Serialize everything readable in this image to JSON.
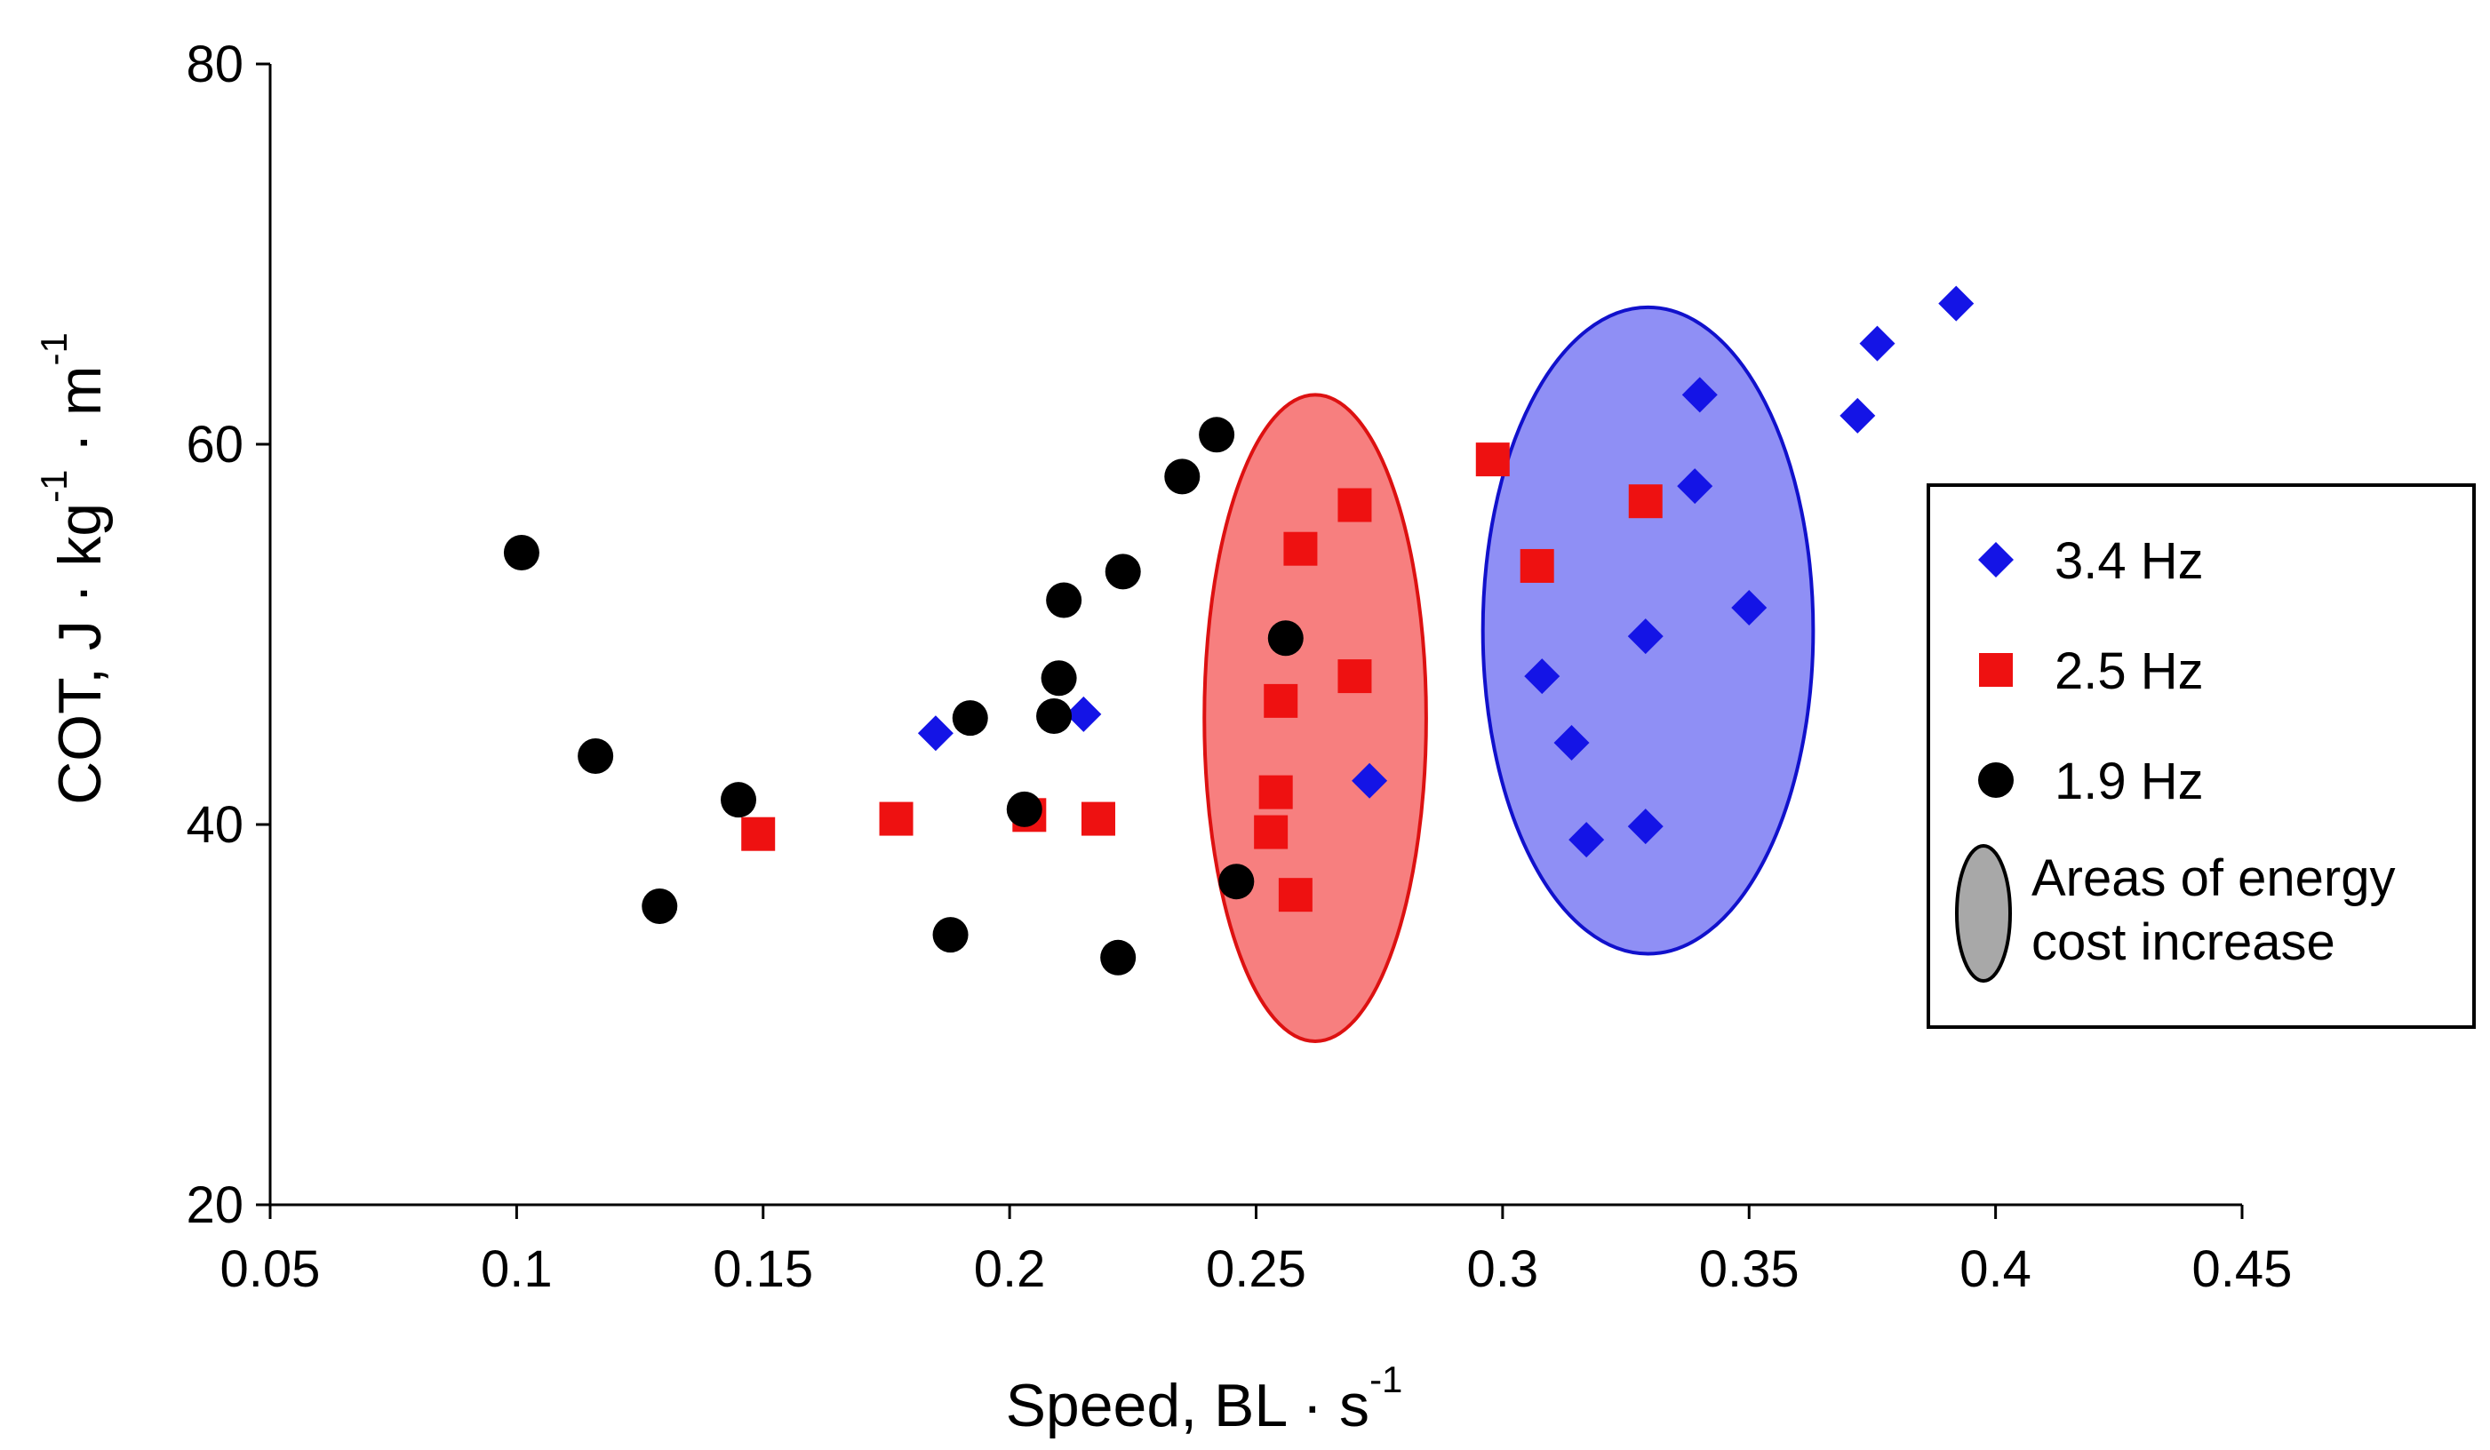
{
  "chart_data": {
    "type": "scatter",
    "title": "",
    "xlabel": {
      "main": "Speed, BL · s",
      "sup": "-1"
    },
    "ylabel": {
      "main1": "COT, J · kg",
      "sup1": "-1",
      "main2": " · m",
      "sup2": "-1"
    },
    "xlim": [
      0.05,
      0.45
    ],
    "ylim": [
      20,
      80
    ],
    "xticks": [
      0.05,
      0.1,
      0.15,
      0.2,
      0.25,
      0.3,
      0.35,
      0.4,
      0.45
    ],
    "xtick_labels": [
      "0.05",
      "0.1",
      "0.15",
      "0.2",
      "0.25",
      "0.3",
      "0.35",
      "0.4",
      "0.45"
    ],
    "yticks": [
      20,
      40,
      60,
      80
    ],
    "ytick_labels": [
      "20",
      "40",
      "60",
      "80"
    ],
    "grid": false,
    "legend_position": "right",
    "series": [
      {
        "name": "3.4 Hz",
        "marker": "diamond",
        "color": "#1414e6",
        "points": [
          [
            0.185,
            44.8
          ],
          [
            0.215,
            45.8
          ],
          [
            0.273,
            42.3
          ],
          [
            0.308,
            47.8
          ],
          [
            0.314,
            44.3
          ],
          [
            0.317,
            39.2
          ],
          [
            0.329,
            39.9
          ],
          [
            0.329,
            49.9
          ],
          [
            0.339,
            57.8
          ],
          [
            0.34,
            62.6
          ],
          [
            0.35,
            51.4
          ],
          [
            0.372,
            61.5
          ],
          [
            0.376,
            65.3
          ],
          [
            0.392,
            67.4
          ]
        ]
      },
      {
        "name": "2.5 Hz",
        "marker": "square",
        "color": "#ee1111",
        "points": [
          [
            0.149,
            39.5
          ],
          [
            0.177,
            40.3
          ],
          [
            0.204,
            40.5
          ],
          [
            0.218,
            40.3
          ],
          [
            0.253,
            39.6
          ],
          [
            0.254,
            41.7
          ],
          [
            0.255,
            46.5
          ],
          [
            0.258,
            36.3
          ],
          [
            0.259,
            54.5
          ],
          [
            0.27,
            56.8
          ],
          [
            0.27,
            47.8
          ],
          [
            0.298,
            59.2
          ],
          [
            0.307,
            53.6
          ],
          [
            0.329,
            57.0
          ]
        ]
      },
      {
        "name": "1.9 Hz",
        "marker": "circle",
        "color": "#000000",
        "points": [
          [
            0.101,
            54.3
          ],
          [
            0.116,
            43.6
          ],
          [
            0.129,
            35.7
          ],
          [
            0.145,
            41.3
          ],
          [
            0.188,
            34.2
          ],
          [
            0.192,
            45.6
          ],
          [
            0.203,
            40.8
          ],
          [
            0.209,
            45.7
          ],
          [
            0.21,
            47.7
          ],
          [
            0.211,
            51.8
          ],
          [
            0.222,
            33.0
          ],
          [
            0.223,
            53.3
          ],
          [
            0.235,
            58.3
          ],
          [
            0.242,
            60.5
          ],
          [
            0.246,
            37.0
          ],
          [
            0.256,
            49.8
          ]
        ]
      }
    ],
    "annotations": [
      {
        "name": "red-area",
        "shape": "ellipse",
        "cx": 0.262,
        "cy": 45.6,
        "rx": 0.0225,
        "ry": 17.0,
        "fill": "#f77f7f",
        "stroke": "#dd1111"
      },
      {
        "name": "blue-area",
        "shape": "ellipse",
        "cx": 0.3295,
        "cy": 50.2,
        "rx": 0.0335,
        "ry": 17.0,
        "fill": "#8f8ff5",
        "stroke": "#1111cc"
      }
    ],
    "legend": {
      "items": [
        {
          "label": "3.4 Hz",
          "marker": "diamond",
          "color": "#1414e6"
        },
        {
          "label": "2.5 Hz",
          "marker": "square",
          "color": "#ee1111"
        },
        {
          "label": "1.9 Hz",
          "marker": "circle",
          "color": "#000000"
        }
      ],
      "area_label_line1": "Areas of energy",
      "area_label_line2": "cost increase",
      "area_color": "#a8a8a8"
    }
  }
}
